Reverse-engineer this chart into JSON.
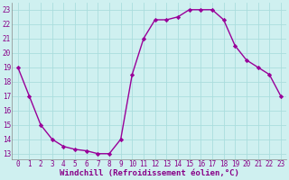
{
  "x": [
    0,
    1,
    2,
    3,
    4,
    5,
    6,
    7,
    8,
    9,
    10,
    11,
    12,
    13,
    14,
    15,
    16,
    17,
    18,
    19,
    20,
    21,
    22,
    23
  ],
  "y": [
    19,
    17,
    15,
    14,
    13.5,
    13.3,
    13.2,
    13,
    13,
    14,
    18.5,
    21,
    22.3,
    22.3,
    22.5,
    23,
    23,
    23,
    22.3,
    20.5,
    19.5,
    19,
    18.5,
    17
  ],
  "line_color": "#990099",
  "marker": "D",
  "marker_size": 2.2,
  "bg_color": "#cff0f0",
  "grid_color": "#aadddd",
  "xlabel": "Windchill (Refroidissement éolien,°C)",
  "xlabel_color": "#880088",
  "xlabel_fontsize": 6.5,
  "ytick_labels": [
    "13",
    "14",
    "15",
    "16",
    "17",
    "18",
    "19",
    "20",
    "21",
    "22",
    "23"
  ],
  "ytick_vals": [
    13,
    14,
    15,
    16,
    17,
    18,
    19,
    20,
    21,
    22,
    23
  ],
  "xtick_vals": [
    0,
    1,
    2,
    3,
    4,
    5,
    6,
    7,
    8,
    9,
    10,
    11,
    12,
    13,
    14,
    15,
    16,
    17,
    18,
    19,
    20,
    21,
    22,
    23
  ],
  "ylim": [
    12.6,
    23.5
  ],
  "xlim": [
    -0.5,
    23.5
  ],
  "tick_fontsize": 5.5,
  "line_width": 1.0
}
